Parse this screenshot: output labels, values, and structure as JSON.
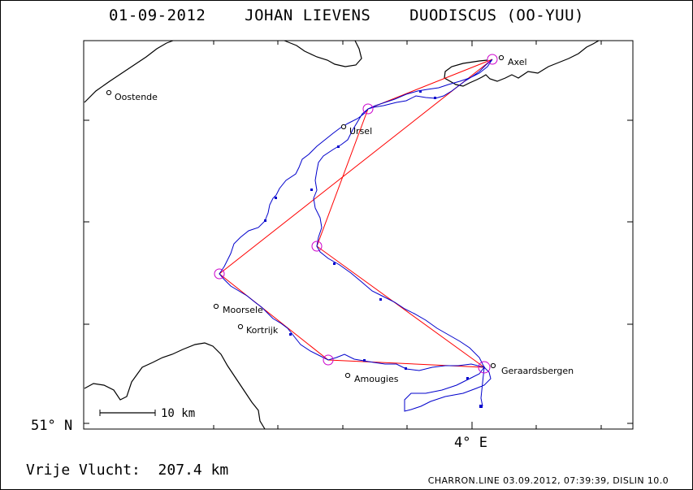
{
  "title": "01-09-2012    JOHAN LIEVENS    DUODISCUS (OO-YUU)",
  "footer": {
    "flight": "Vrije Vlucht:  207.4 km",
    "credit": "CHARRON.LINE 03.09.2012, 07:39:39, DISLIN 10.0"
  },
  "axes": {
    "lat_label": "51° N",
    "lon_label": "4° E"
  },
  "scale_bar": "10 km",
  "towns": [
    {
      "name": "Oostende"
    },
    {
      "name": "Axel"
    },
    {
      "name": "Ursel"
    },
    {
      "name": "Moorsele"
    },
    {
      "name": "Kortrijk"
    },
    {
      "name": "Amougies"
    },
    {
      "name": "Geraardsbergen"
    }
  ],
  "colors": {
    "track": "#0000cc",
    "task_line": "#ff0000",
    "turnpoint": "#cc00cc",
    "coast_border": "#000000"
  }
}
